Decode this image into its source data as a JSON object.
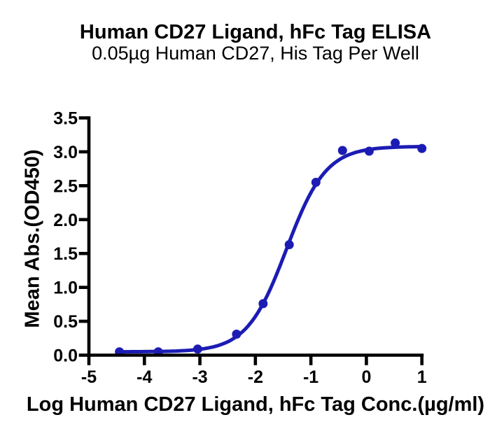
{
  "figure": {
    "background_color": "#ffffff",
    "axis_color": "#000000",
    "accent_color": "#1c1cb4"
  },
  "chart_data": {
    "type": "scatter",
    "title": "Human CD27 Ligand, hFc Tag ELISA",
    "subtitle": "0.05µg Human CD27, His Tag Per Well",
    "xlabel": "Log Human CD27 Ligand, hFc Tag Conc.(µg/ml)",
    "ylabel": "Mean Abs.(OD450)",
    "xlim": [
      -5,
      1
    ],
    "ylim": [
      0,
      3.5
    ],
    "grid": false,
    "legend": "none",
    "x_tick_values": [
      -5,
      -4,
      -3,
      -2,
      -1,
      0,
      1
    ],
    "x_tick_labels": [
      "-5",
      "-4",
      "-3",
      "-2",
      "-1",
      "0",
      "1"
    ],
    "y_tick_values": [
      0,
      0.5,
      1,
      1.5,
      2,
      2.5,
      3,
      3.5
    ],
    "y_tick_labels": [
      "0.0",
      "0.5",
      "1.0",
      "1.5",
      "2.0",
      "2.5",
      "3.0",
      "3.5"
    ],
    "series": [
      {
        "name": "Human CD27 Ligand, hFc Tag",
        "color": "#1c1cb4",
        "marker": "circle",
        "marker_size": 13,
        "line": "4PL sigmoidal fit",
        "points": [
          {
            "x": -4.45,
            "y": 0.05
          },
          {
            "x": -3.75,
            "y": 0.05
          },
          {
            "x": -3.04,
            "y": 0.09
          },
          {
            "x": -2.34,
            "y": 0.31
          },
          {
            "x": -1.86,
            "y": 0.76
          },
          {
            "x": -1.39,
            "y": 1.63
          },
          {
            "x": -0.91,
            "y": 2.55
          },
          {
            "x": -0.43,
            "y": 3.02
          },
          {
            "x": 0.05,
            "y": 3.01
          },
          {
            "x": 0.52,
            "y": 3.13
          },
          {
            "x": 1.0,
            "y": 3.05
          }
        ],
        "fit_curve": {
          "model": "4PL",
          "bottom": 0.05,
          "top": 3.08,
          "log_ec50": -1.44,
          "hill_slope": 1.22
        }
      }
    ]
  }
}
